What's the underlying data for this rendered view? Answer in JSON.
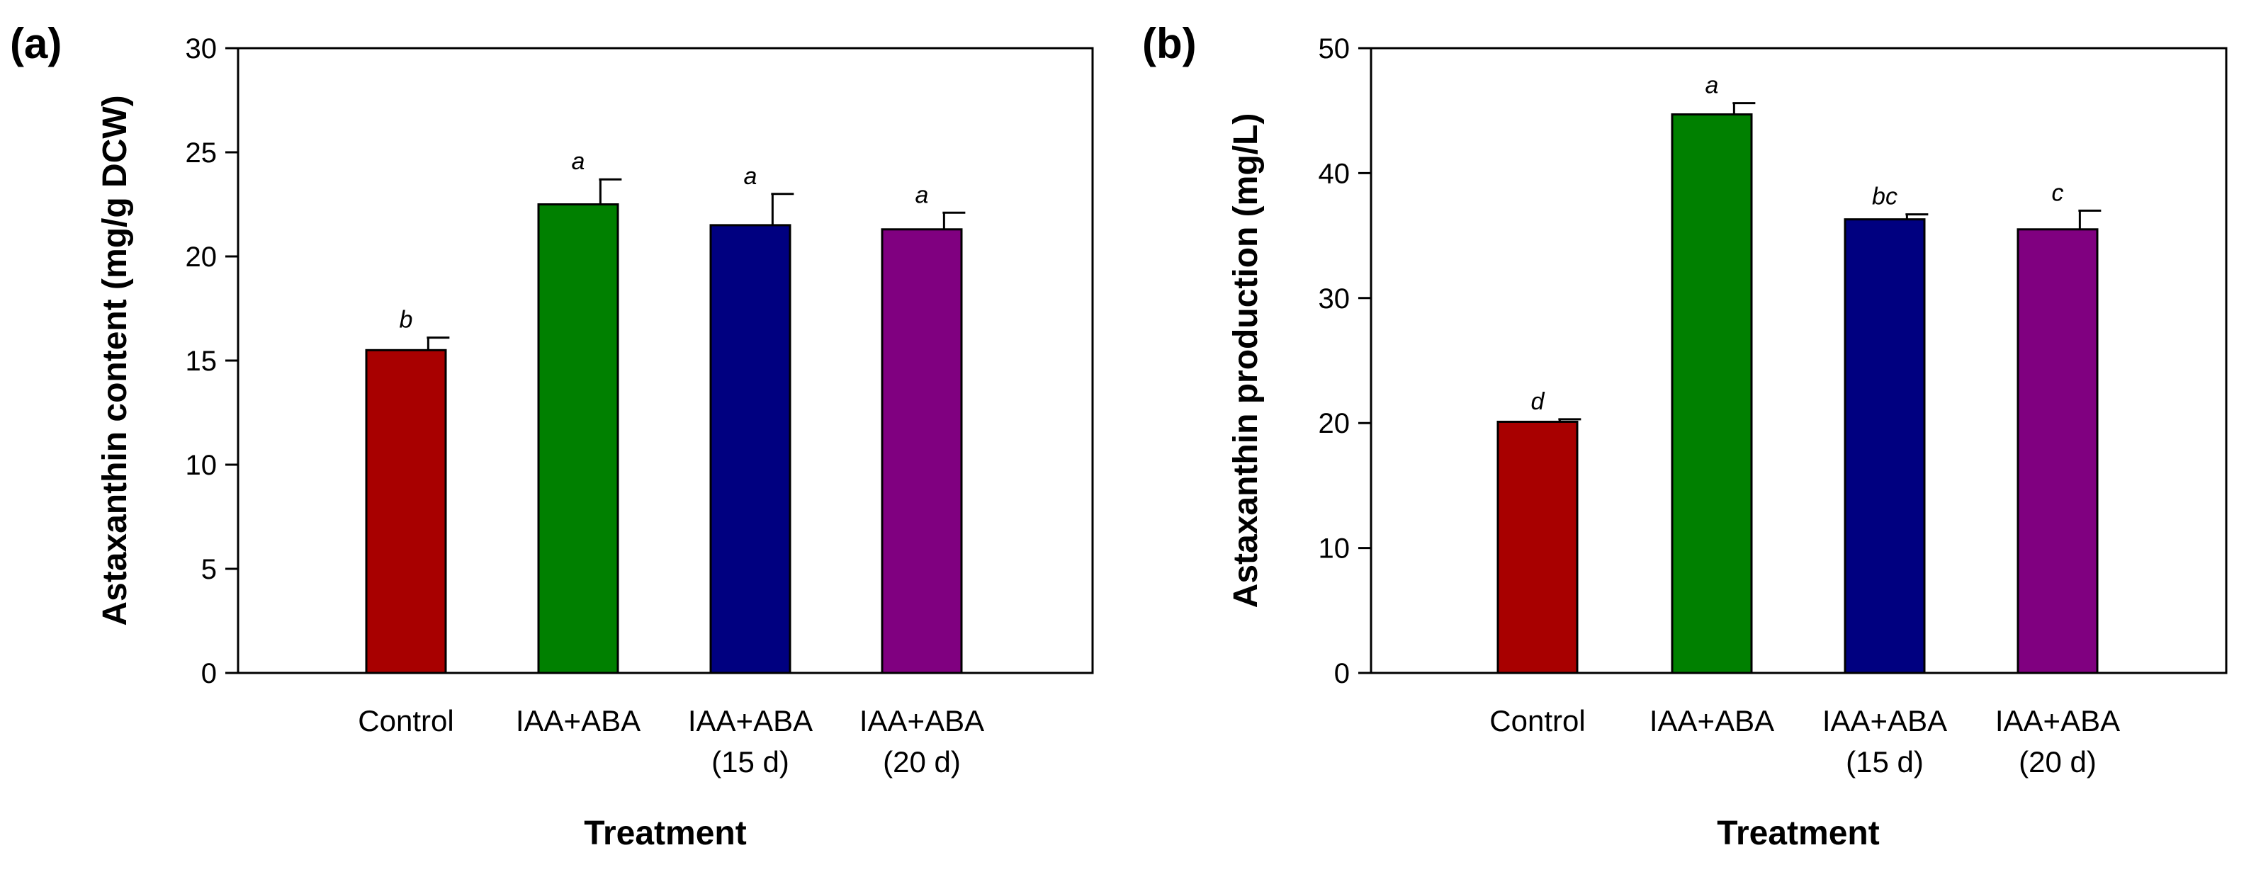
{
  "chart_data": [
    {
      "type": "bar",
      "panel_label": "(a)",
      "categories": [
        [
          "Control"
        ],
        [
          "IAA+ABA"
        ],
        [
          "IAA+ABA",
          "(15 d)"
        ],
        [
          "IAA+ABA",
          "(20 d)"
        ]
      ],
      "values": [
        15.5,
        22.5,
        21.5,
        21.3
      ],
      "error": [
        0.6,
        1.2,
        1.5,
        0.8
      ],
      "significance": [
        "b",
        "a",
        "a",
        "a"
      ],
      "colors": [
        "#a80000",
        "#008000",
        "#000080",
        "#800080"
      ],
      "xlabel": "Treatment",
      "ylabel": "Astaxanthin content (mg/g DCW)",
      "ylim": [
        0,
        30
      ],
      "yticks": [
        0,
        5,
        10,
        15,
        20,
        25,
        30
      ],
      "grid": false
    },
    {
      "type": "bar",
      "panel_label": "(b)",
      "categories": [
        [
          "Control"
        ],
        [
          "IAA+ABA"
        ],
        [
          "IAA+ABA",
          "(15 d)"
        ],
        [
          "IAA+ABA",
          "(20 d)"
        ]
      ],
      "values": [
        20.1,
        44.7,
        36.3,
        35.5
      ],
      "error": [
        0.2,
        0.9,
        0.4,
        1.5
      ],
      "significance": [
        "d",
        "a",
        "bc",
        "c"
      ],
      "colors": [
        "#a80000",
        "#008000",
        "#000080",
        "#800080"
      ],
      "xlabel": "Treatment",
      "ylabel": "Astaxanthin production (mg/L)",
      "ylim": [
        0,
        50
      ],
      "yticks": [
        0,
        10,
        20,
        30,
        40,
        50
      ],
      "grid": false
    }
  ]
}
